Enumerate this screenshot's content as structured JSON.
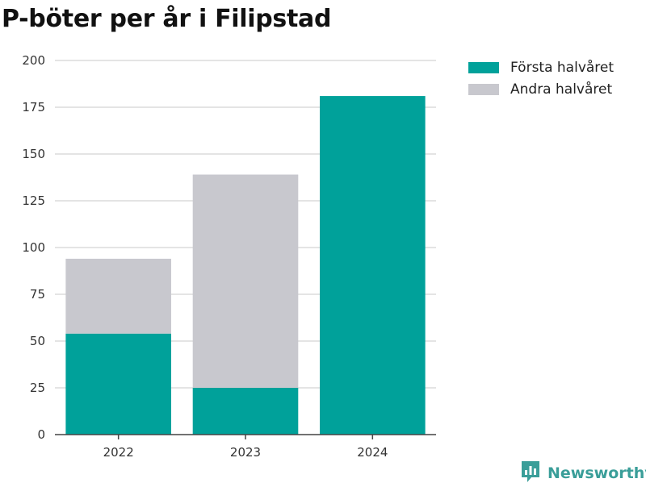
{
  "title": "P-böter per år i Filipstad",
  "brand": {
    "name": "Newsworthy",
    "icon": "newsworthy-logo-icon",
    "color": "#3a9e99"
  },
  "chart_data": {
    "type": "bar",
    "stacked": true,
    "title": "P-böter per år i Filipstad",
    "categories": [
      "2022",
      "2023",
      "2024"
    ],
    "series": [
      {
        "name": "Första halvåret",
        "color": "#00a19a",
        "values": [
          54,
          25,
          181
        ]
      },
      {
        "name": "Andra halvåret",
        "color": "#c8c8ce",
        "values": [
          40,
          114,
          0
        ]
      }
    ],
    "ylim": [
      0,
      200
    ],
    "yticks": [
      "0",
      "25",
      "50",
      "75",
      "100",
      "125",
      "150",
      "175",
      "200"
    ],
    "grid": true,
    "legend": "top-right"
  }
}
